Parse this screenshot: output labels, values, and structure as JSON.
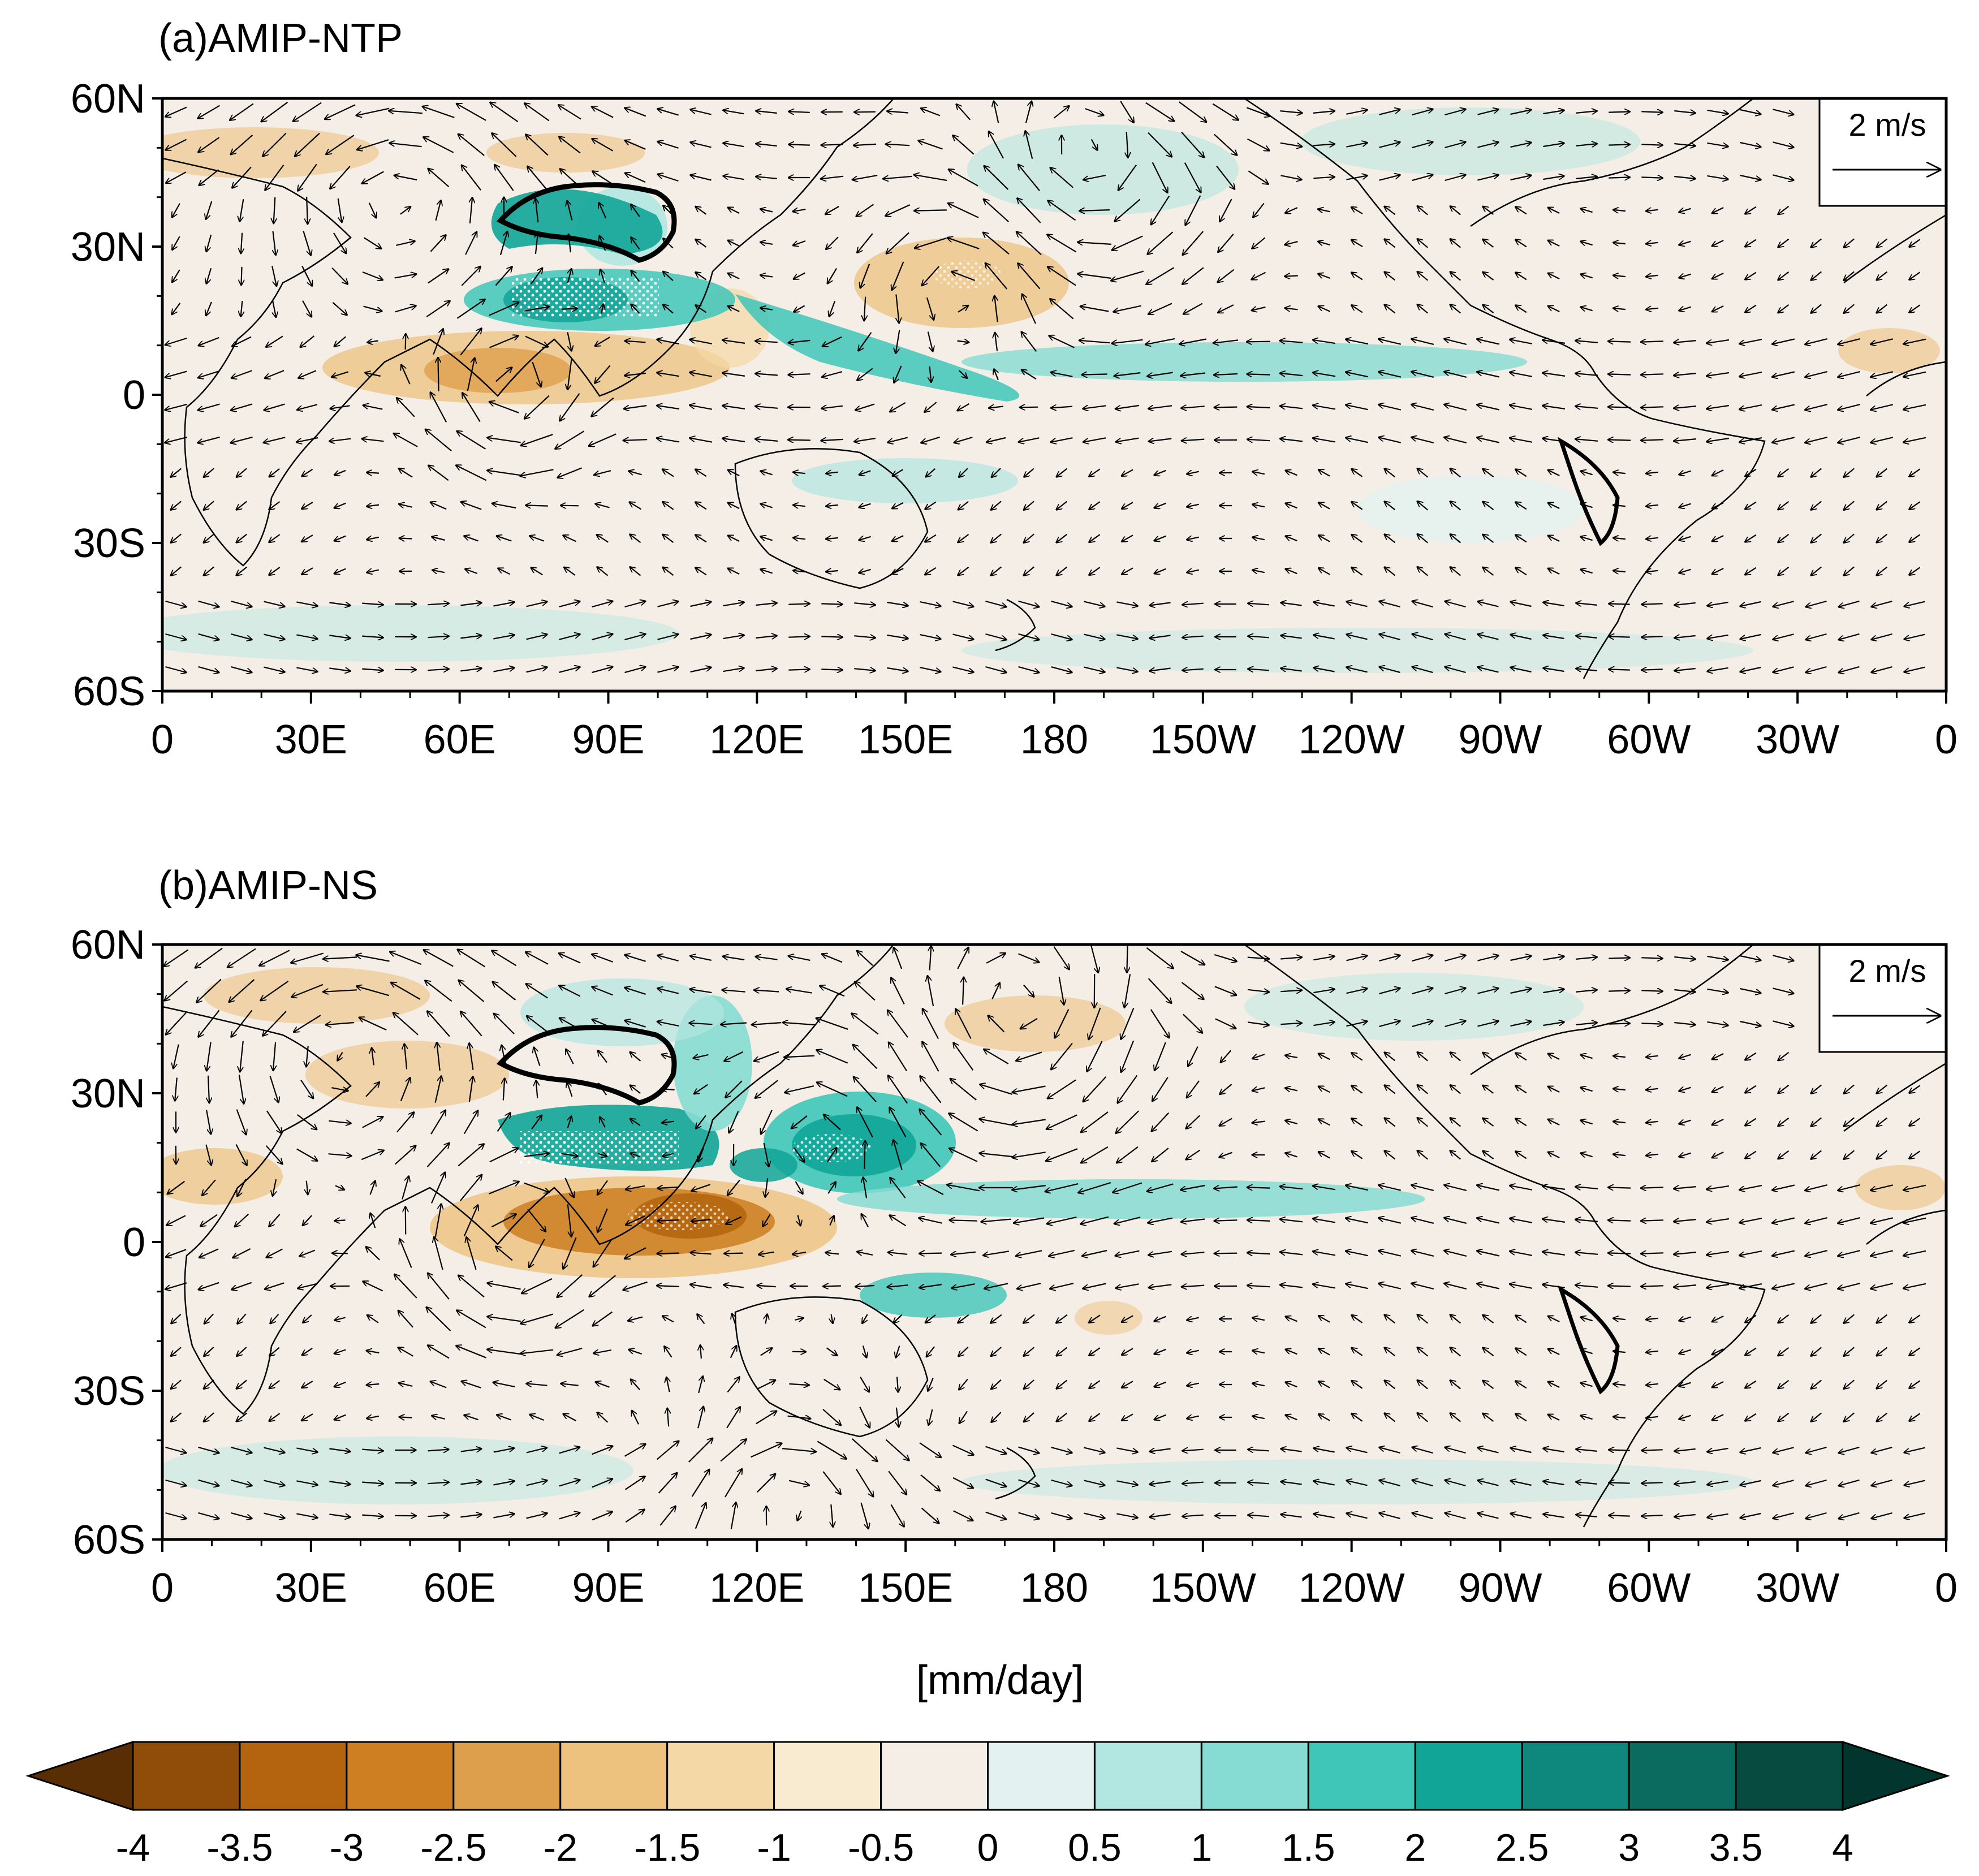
{
  "panels": [
    {
      "title": "(a)AMIP-NTP",
      "ref_vector_label": "2 m/s"
    },
    {
      "title": "(b)AMIP-NS",
      "ref_vector_label": "2 m/s"
    }
  ],
  "lat_ticks": [
    "60N",
    "30N",
    "0",
    "30S",
    "60S"
  ],
  "lon_ticks": [
    "0",
    "30E",
    "60E",
    "90E",
    "120E",
    "150E",
    "180",
    "150W",
    "120W",
    "90W",
    "60W",
    "30W",
    "0"
  ],
  "colorbar": {
    "unit_label": "[mm/day]",
    "levels": [
      "-4",
      "-3.5",
      "-3",
      "-2.5",
      "-2",
      "-1.5",
      "-1",
      "-0.5",
      "0",
      "0.5",
      "1",
      "1.5",
      "2",
      "2.5",
      "3",
      "3.5",
      "4"
    ],
    "colors": [
      "#5a2e05",
      "#8f4d09",
      "#b4640e",
      "#cd7f21",
      "#de9f4c",
      "#edc27e",
      "#f4d8a5",
      "#f8ebd0",
      "#f4eee6",
      "#e3f1f0",
      "#b2e6e0",
      "#86dbd2",
      "#3fc6b8",
      "#11a598",
      "#0e887c",
      "#0c6b5f",
      "#064a40",
      "#02352d"
    ]
  }
}
